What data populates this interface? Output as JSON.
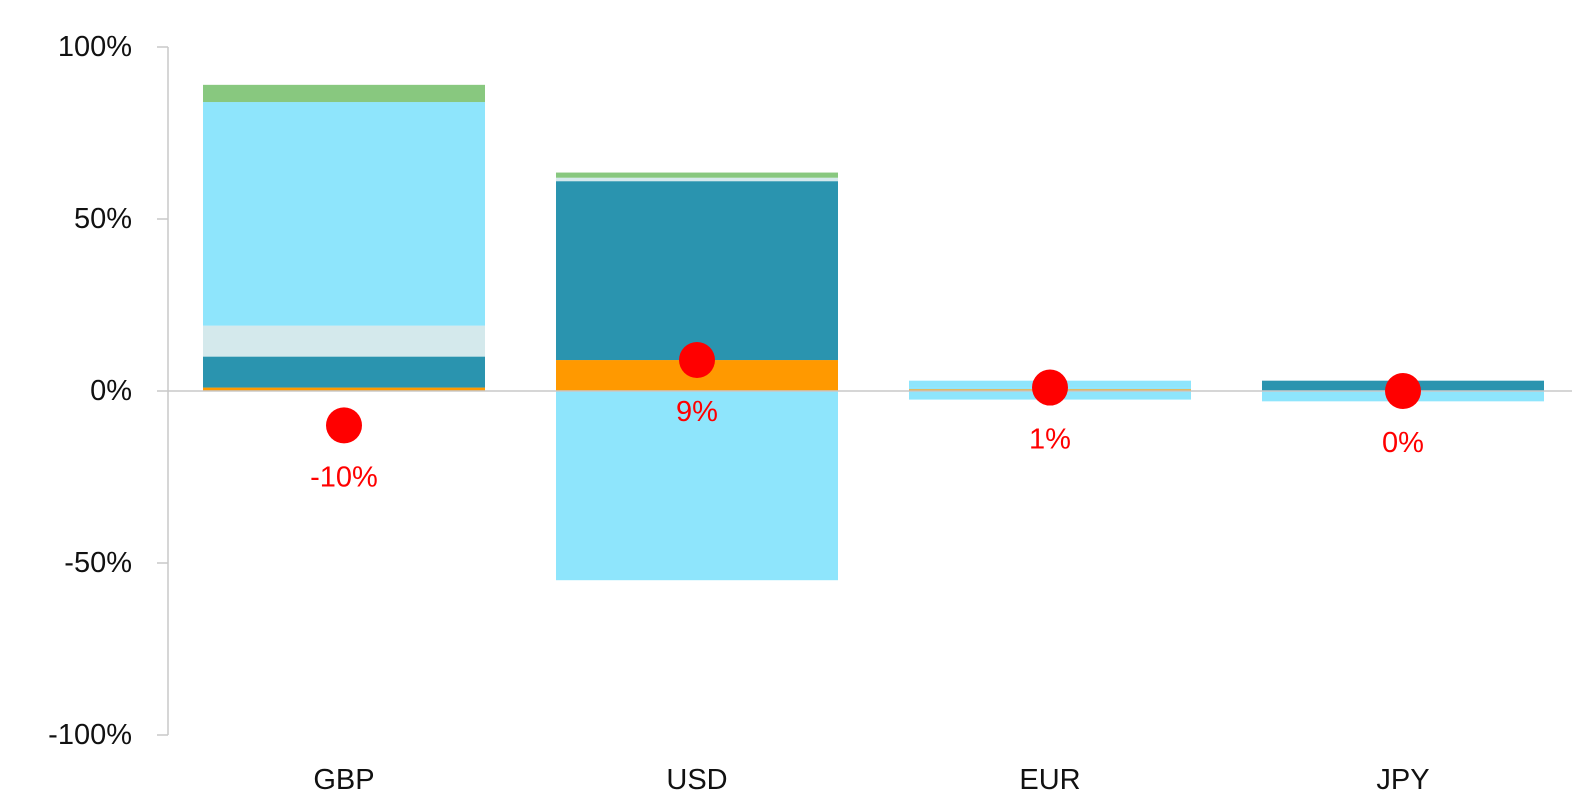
{
  "chart_data": {
    "type": "bar",
    "stacked": true,
    "title": "",
    "xlabel": "",
    "ylabel": "",
    "categories": [
      "GBP",
      "USD",
      "EUR",
      "JPY"
    ],
    "ylim": [
      -100,
      100
    ],
    "y_ticks": [
      100,
      50,
      0,
      -50,
      -100
    ],
    "y_tick_labels": [
      "100%",
      "50%",
      "0%",
      "-50%",
      "-100%"
    ],
    "grid": false,
    "legend": "none",
    "series": [
      {
        "color": "#FF9900",
        "values": [
          1,
          9,
          0.5,
          0
        ]
      },
      {
        "color": "#2A94AF",
        "values": [
          9,
          52,
          0,
          3
        ]
      },
      {
        "color": "#D4E9EC",
        "values": [
          9,
          1,
          0,
          0
        ]
      },
      {
        "color": "#8EE5FC",
        "values": [
          65,
          -55,
          0.5,
          -3
        ]
      },
      {
        "color": "#88C87F",
        "values": [
          5,
          1.5,
          0,
          0
        ]
      },
      {
        "color": "#8EE5FC",
        "values": [
          0,
          0,
          2,
          0
        ]
      },
      {
        "color": "#8EE5FC",
        "values": [
          0,
          0,
          -2.5,
          0
        ]
      }
    ],
    "net": {
      "color": "#FF0000",
      "values": [
        -10,
        9,
        1,
        0
      ],
      "labels": [
        "-10%",
        "9%",
        "1%",
        "0%"
      ],
      "label_position": [
        "below",
        "below",
        "below",
        "below"
      ]
    }
  }
}
